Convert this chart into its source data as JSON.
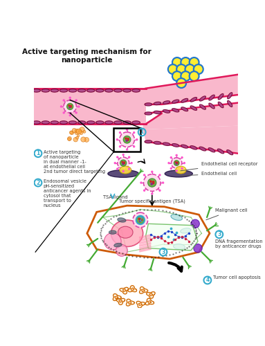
{
  "title": "Active targeting mechanism for\nnanoparticle",
  "title_fontsize": 7.5,
  "bg_color": "#ffffff",
  "vessel_color": "#f9b8cc",
  "vessel_border": "#e0185a",
  "endo_fill": "#aa4488",
  "endo_edge": "#770033",
  "yellow_fill": "#ffee33",
  "blue_border": "#2277cc",
  "np_outer": "#dd44aa",
  "np_inner": "#55aa33",
  "cell_border": "#cc5500",
  "annotation_color": "#33aacc",
  "text_color": "#333333",
  "label1_text": "Active targeting\nof nanoparticle\nin dual manner -1-\nat endothelial cell\n2nd tumor direct targeting",
  "label2_text": "Endosomal vesicle\npH-sensitized\nanticancer agents in\ncytosol that\ntransport to\nnucleus",
  "endo_receptor_text": "Endothelial cell receptor",
  "endo_cell_text": "Endothelial cell",
  "tsa_ligand_text": "TSA ligand",
  "tsa_text": "Tumor specific antigen (TSA)",
  "malignant_text": "Malignant cell",
  "dna_text": "DNA fragementation\nby anticancer drugs",
  "apoptosis_text": "Tumor cell apoptosis"
}
